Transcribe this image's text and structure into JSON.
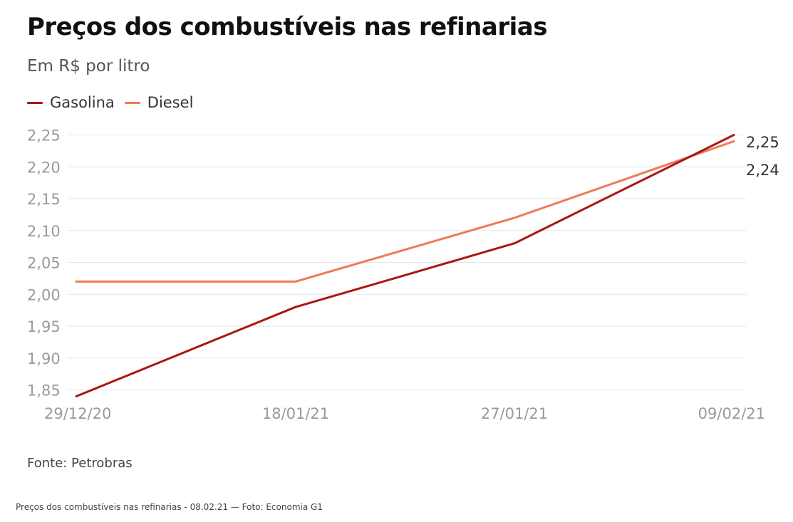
{
  "colors": {
    "gasolina": "#a81816",
    "diesel": "#ed7b54",
    "grid": "#e6e6e6",
    "tick": "#9a9a9a",
    "end_label": "#333333"
  },
  "chart_data": {
    "type": "line",
    "title": "Preços dos combustíveis nas refinarias",
    "subtitle": "Em R$ por litro",
    "categories": [
      "29/12/20",
      "18/01/21",
      "27/01/21",
      "09/02/21"
    ],
    "y_ticks": [
      "2,25",
      "2,20",
      "2,15",
      "2,10",
      "2,05",
      "2,00",
      "1,95",
      "1,90",
      "1,85"
    ],
    "ylim": [
      1.84,
      2.25
    ],
    "legend_position": "top-left",
    "grid": true,
    "series": [
      {
        "name": "Gasolina",
        "values": [
          1.84,
          1.98,
          2.08,
          2.25
        ],
        "end_label": "2,25"
      },
      {
        "name": "Diesel",
        "values": [
          2.02,
          2.02,
          2.12,
          2.24
        ],
        "end_label": "2,24"
      }
    ],
    "source": "Fonte: Petrobras"
  },
  "caption": "Preços dos combustíveis nas refinarias - 08.02.21 — Foto: Economia G1"
}
